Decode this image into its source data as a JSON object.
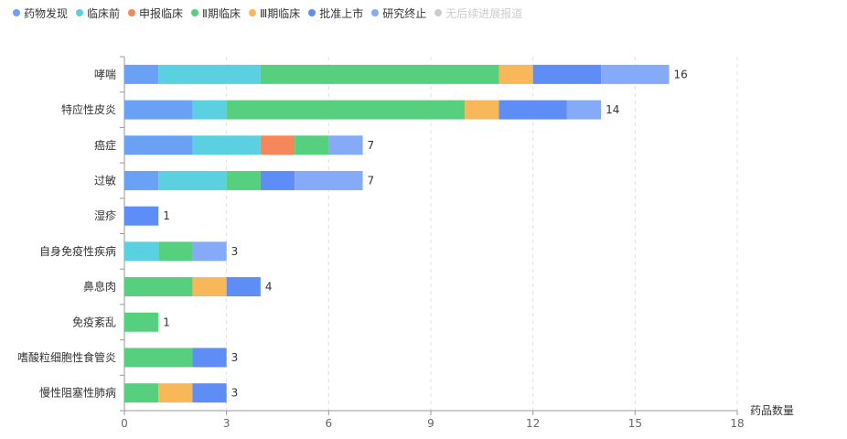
{
  "chart_data": {
    "type": "bar",
    "orientation": "horizontal",
    "stacked": true,
    "categories": [
      "哮喘",
      "特应性皮炎",
      "癌症",
      "过敏",
      "湿疹",
      "自身免疫性疾病",
      "鼻息肉",
      "免疫紊乱",
      "嗜酸粒细胞性食管炎",
      "慢性阻塞性肺病"
    ],
    "series": [
      {
        "name": "药物发现",
        "color": "#6aa1f5",
        "values": [
          1,
          2,
          2,
          1,
          0,
          0,
          0,
          0,
          0,
          0
        ]
      },
      {
        "name": "临床前",
        "color": "#5ad0e0",
        "values": [
          3,
          1,
          2,
          2,
          0,
          1,
          0,
          0,
          0,
          0
        ]
      },
      {
        "name": "申报临床",
        "color": "#f5875a",
        "values": [
          0,
          0,
          1,
          0,
          0,
          0,
          0,
          0,
          0,
          0
        ]
      },
      {
        "name": "Ⅱ期临床",
        "color": "#56d07e",
        "values": [
          7,
          7,
          1,
          1,
          0,
          1,
          2,
          1,
          2,
          1
        ]
      },
      {
        "name": "Ⅲ期临床",
        "color": "#f8b85a",
        "values": [
          1,
          1,
          0,
          0,
          0,
          0,
          1,
          0,
          0,
          1
        ]
      },
      {
        "name": "批准上市",
        "color": "#5e8ef5",
        "values": [
          2,
          2,
          0,
          1,
          1,
          0,
          1,
          0,
          1,
          1
        ]
      },
      {
        "name": "研究终止",
        "color": "#84aaf8",
        "values": [
          2,
          1,
          1,
          2,
          0,
          1,
          0,
          0,
          0,
          0
        ]
      },
      {
        "name": "无后续进展报道",
        "color": "#cccccc",
        "inactive": true,
        "values": [
          0,
          0,
          0,
          0,
          0,
          0,
          0,
          0,
          0,
          0
        ]
      }
    ],
    "totals": [
      16,
      14,
      7,
      7,
      1,
      3,
      4,
      1,
      3,
      3
    ],
    "xlabel": "药品数量",
    "xlim": [
      0,
      18
    ],
    "xticks": [
      0,
      3,
      6,
      9,
      12,
      15,
      18
    ],
    "grid": "vertical dashed",
    "legend_position": "top-left"
  }
}
